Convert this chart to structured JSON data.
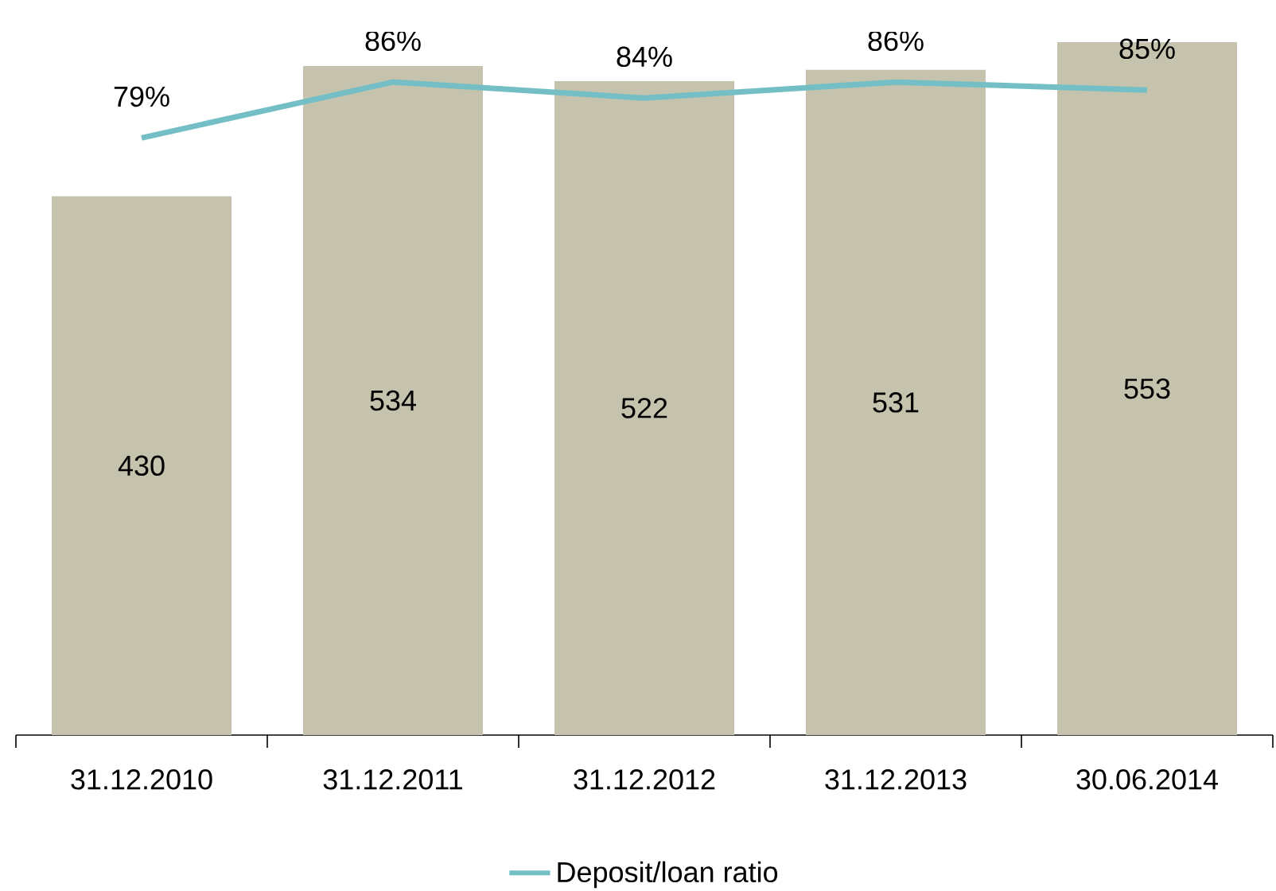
{
  "chart_data": {
    "type": "bar",
    "categories": [
      "31.12.2010",
      "31.12.2011",
      "31.12.2012",
      "31.12.2013",
      "30.06.2014"
    ],
    "series": [
      {
        "color": "#c5c3ad",
        "values": [
          430,
          534,
          522,
          531,
          553
        ],
        "value_labels": [
          "430",
          "534",
          "522",
          "531",
          "553"
        ]
      },
      {
        "type": "line",
        "axis": "y2",
        "name": "Deposit/loan ratio",
        "color": "#74bec6",
        "values": [
          79,
          86,
          84,
          86,
          85
        ],
        "value_labels": [
          "79%",
          "86%",
          "84%",
          "86%",
          "85%"
        ]
      }
    ],
    "legend": "bottom",
    "grid": false,
    "marker": "none",
    "line_style": "solid"
  }
}
